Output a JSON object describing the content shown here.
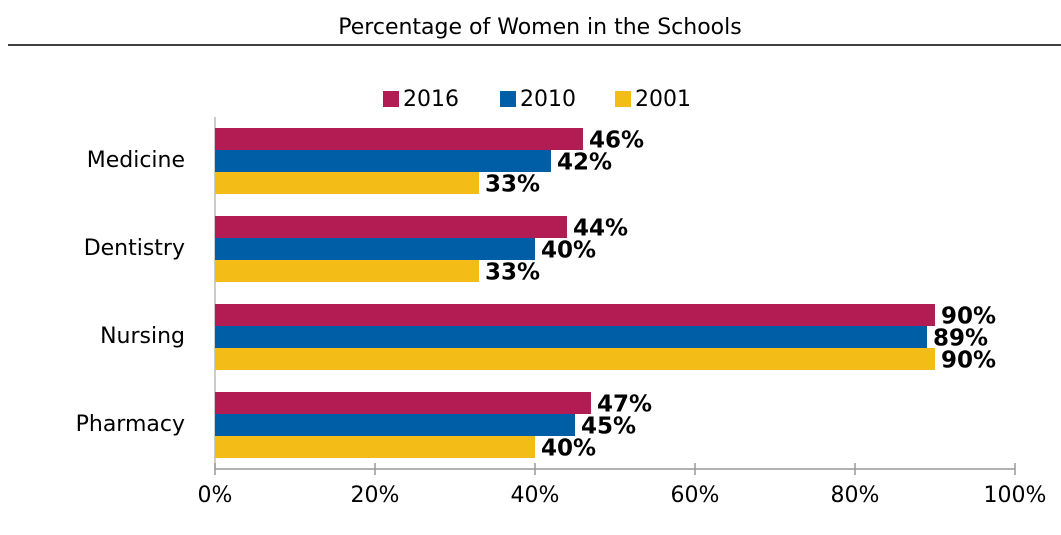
{
  "chart_data": {
    "type": "bar",
    "orientation": "horizontal",
    "title": "Percentage of Women in the Schools",
    "categories": [
      "Medicine",
      "Dentistry",
      "Nursing",
      "Pharmacy"
    ],
    "series": [
      {
        "name": "2016",
        "color": "#b31b53",
        "values": [
          46,
          44,
          90,
          47
        ],
        "value_labels": [
          "46%",
          "44%",
          "90%",
          "47%"
        ]
      },
      {
        "name": "2010",
        "color": "#005ea6",
        "values": [
          42,
          40,
          89,
          45
        ],
        "value_labels": [
          "42%",
          "40%",
          "89%",
          "45%"
        ]
      },
      {
        "name": "2001",
        "color": "#f3bc17",
        "values": [
          33,
          33,
          90,
          40
        ],
        "value_labels": [
          "33%",
          "33%",
          "90%",
          "40%"
        ]
      }
    ],
    "xlim": [
      0,
      100
    ],
    "xticks": [
      {
        "value": 0,
        "label": "0%"
      },
      {
        "value": 20,
        "label": "20%"
      },
      {
        "value": 40,
        "label": "40%"
      },
      {
        "value": 60,
        "label": "60%"
      },
      {
        "value": 80,
        "label": "80%"
      },
      {
        "value": 100,
        "label": "100%"
      }
    ],
    "legend": "top"
  }
}
